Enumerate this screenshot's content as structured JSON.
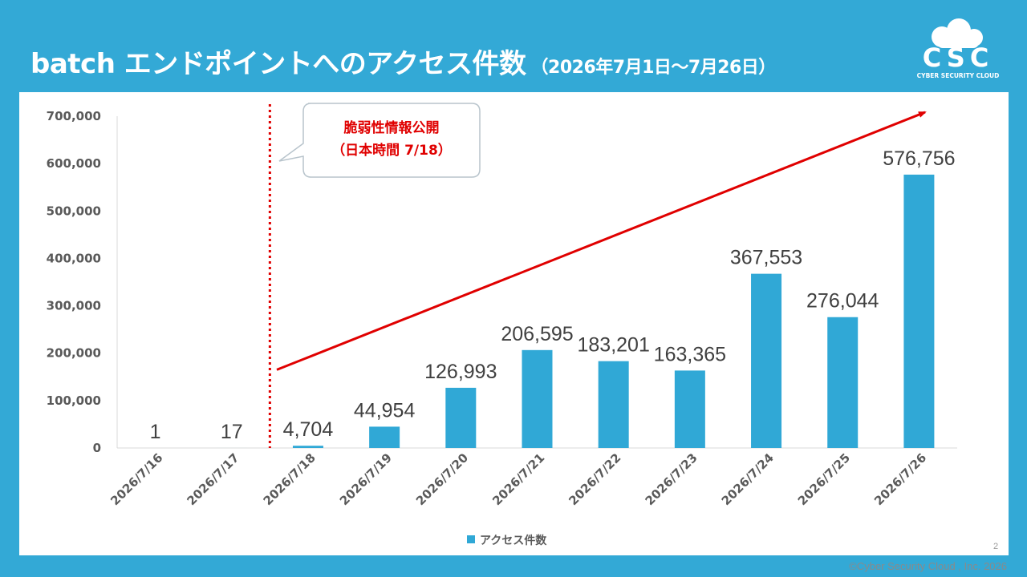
{
  "header": {
    "title": "batch エンドポイントへのアクセス件数",
    "subtitle": "（2026年7月1日～7月26日）"
  },
  "logo": {
    "text": "CSC",
    "subtext": "CYBER SECURITY CLOUD",
    "icon": "cloud-icon"
  },
  "footer": {
    "copyright": "©Cyber Security Cloud , Inc. 2026",
    "page_number": "2"
  },
  "annotation": {
    "line1": "脆弱性情報公開",
    "line2": "（日本時間 7/18）",
    "marker_after_category": "2026/7/17",
    "color": "#E00000"
  },
  "colors": {
    "background": "#33A9D6",
    "bar": "#30A8D6",
    "trend_arrow": "#E00000"
  },
  "chart_data": {
    "type": "bar",
    "categories": [
      "2026/7/16",
      "2026/7/17",
      "2026/7/18",
      "2026/7/19",
      "2026/7/20",
      "2026/7/21",
      "2026/7/22",
      "2026/7/23",
      "2026/7/24",
      "2026/7/25",
      "2026/7/26"
    ],
    "series": [
      {
        "name": "アクセス件数",
        "values": [
          1,
          17,
          4704,
          44954,
          126993,
          206595,
          183201,
          163365,
          367553,
          276044,
          576756
        ]
      }
    ],
    "data_labels": [
      "1",
      "17",
      "4,704",
      "44,954",
      "126,993",
      "206,595",
      "183,201",
      "163,365",
      "367,553",
      "276,044",
      "576,756"
    ],
    "yticks": [
      "0",
      "100,000",
      "200,000",
      "300,000",
      "400,000",
      "500,000",
      "600,000",
      "700,000"
    ],
    "ylim": [
      0,
      700000
    ],
    "title": "",
    "xlabel": "",
    "ylabel": "",
    "grid": false,
    "legend_position": "bottom",
    "trend_arrow": {
      "from": 165000,
      "to": 700000,
      "direction": "up-right"
    }
  }
}
